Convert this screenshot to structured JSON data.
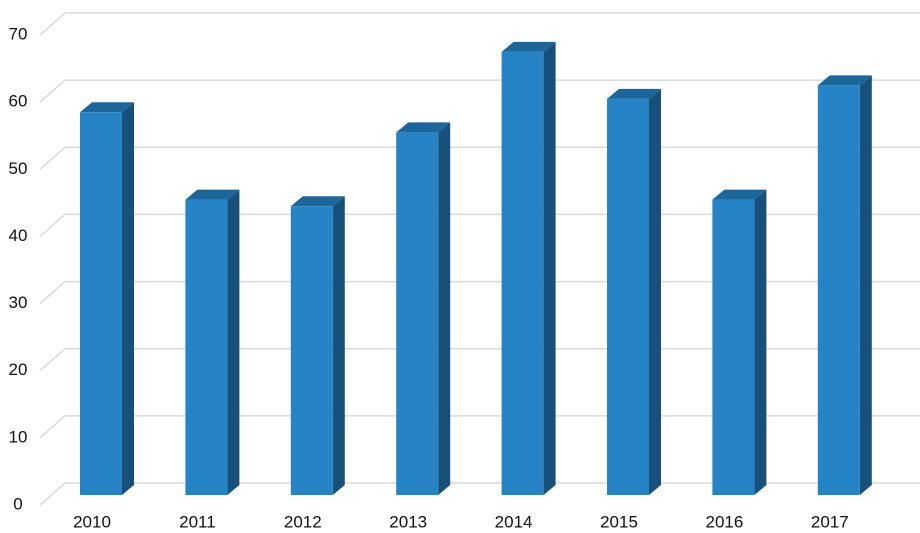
{
  "chart_data": {
    "type": "bar",
    "categories": [
      "2010",
      "2011",
      "2012",
      "2013",
      "2014",
      "2015",
      "2016",
      "2017"
    ],
    "values": [
      57,
      44,
      43,
      54,
      66,
      59,
      44,
      61
    ],
    "color": "#2583c6",
    "ylim": [
      0,
      70
    ],
    "yticks": [
      0,
      10,
      20,
      30,
      40,
      50,
      60,
      70
    ],
    "grid": true
  }
}
